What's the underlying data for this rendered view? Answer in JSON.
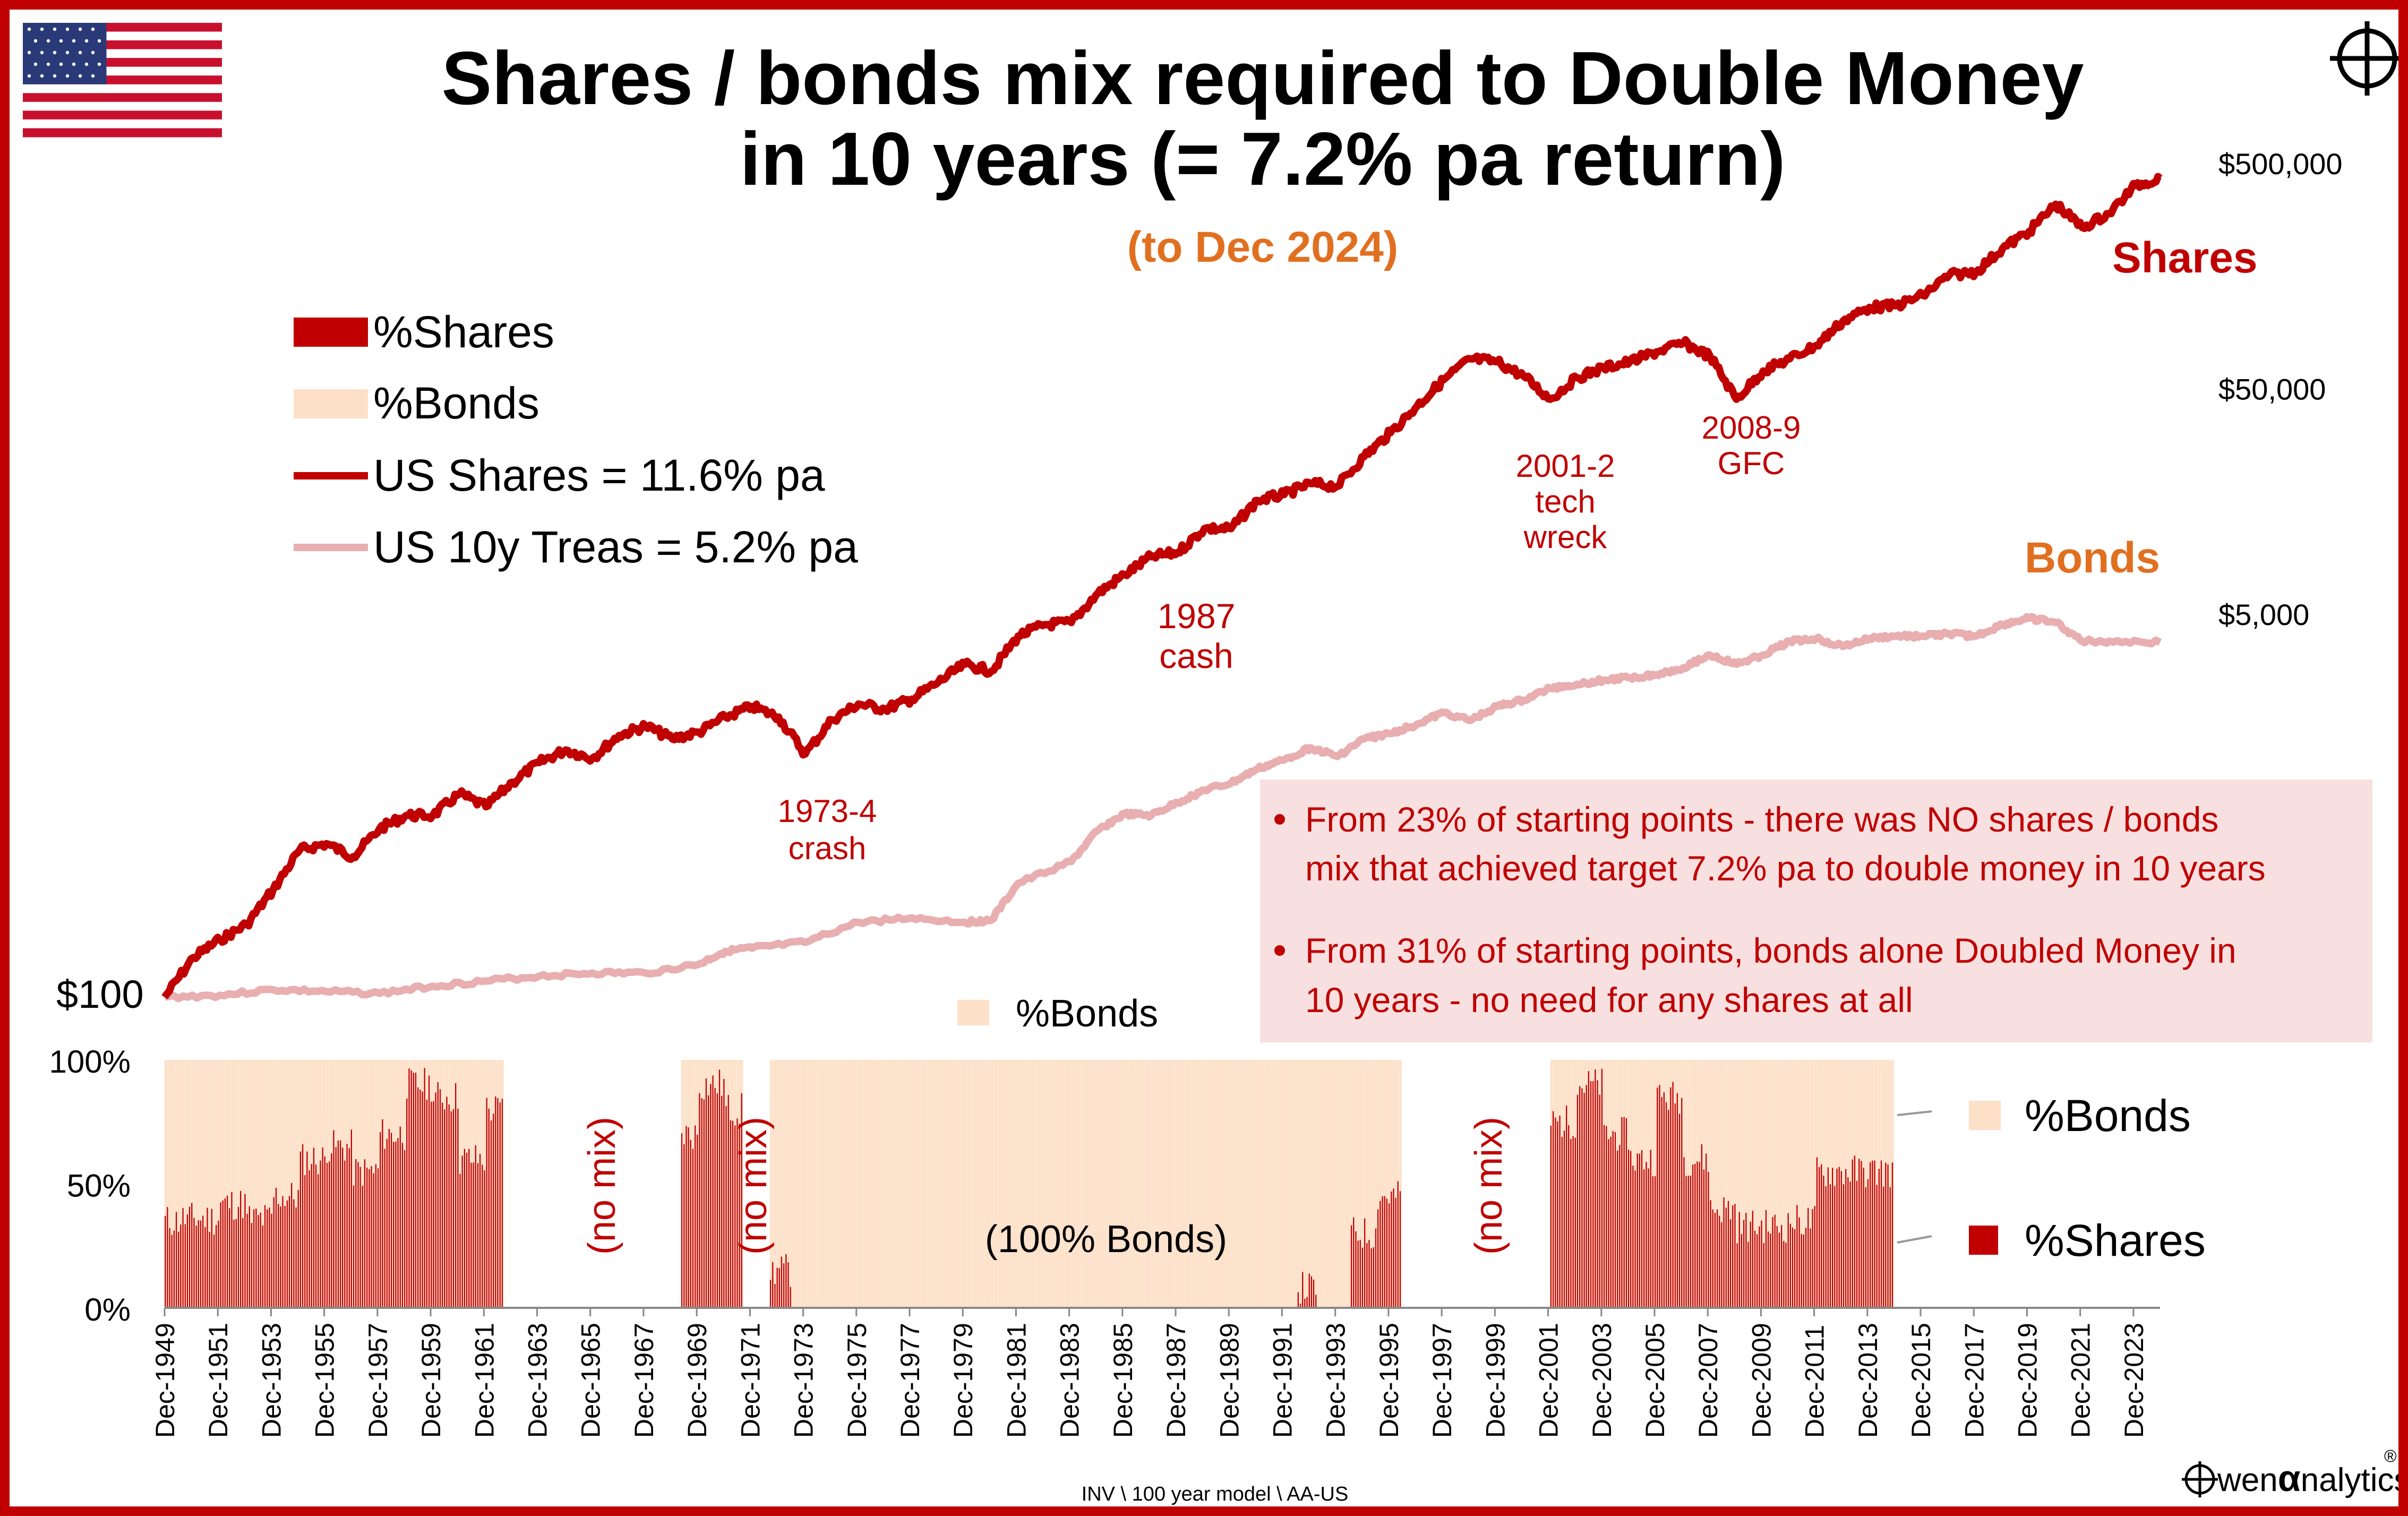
{
  "title_line1": "Shares / bonds mix required to Double Money",
  "title_line2": "in 10 years (= 7.2% pa return)",
  "subtitle": "(to Dec 2024)",
  "colors": {
    "border": "#c00000",
    "shares": "#c00000",
    "bonds_line": "#e8aeb0",
    "bonds_fill": "#fde0c8",
    "orange": "#e07020",
    "note_box": "#f8e0e0"
  },
  "legend_top": [
    {
      "label": "%Shares",
      "icon": "swatch-shares"
    },
    {
      "label": "%Bonds",
      "icon": "swatch-bonds"
    },
    {
      "label": "US Shares = 11.6% pa",
      "icon": "line-shares"
    },
    {
      "label": "US 10y Treas = 5.2% pa",
      "icon": "line-bonds"
    }
  ],
  "series_labels": {
    "shares": "Shares",
    "bonds": "Bonds"
  },
  "start_label": "$100",
  "annotations": [
    {
      "lines": [
        "1973-4",
        "crash"
      ]
    },
    {
      "lines": [
        "1987",
        "cash"
      ]
    },
    {
      "lines": [
        "2001-2",
        "tech",
        "wreck"
      ]
    },
    {
      "lines": [
        "2008-9",
        "GFC"
      ]
    }
  ],
  "notes": [
    "From 23% of starting points - there was NO shares / bonds mix that achieved target 7.2% pa to double money in 10 years",
    "From 31% of starting points, bonds alone Doubled Money in 10 years - no need for any shares at all"
  ],
  "mid_legend_label": "%Bonds",
  "bottom_legend": [
    {
      "label": "%Bonds",
      "icon": "swatch-bonds"
    },
    {
      "label": "%Shares",
      "icon": "swatch-shares"
    }
  ],
  "bar_annotations": [
    "(no mix)",
    "(no mix)",
    "(no mix)",
    "(100% Bonds)"
  ],
  "footer_path": "INV \\ 100 year model \\ AA-US",
  "brand": {
    "prefix": "wen",
    "alpha": "α",
    "suffix": "nalytics",
    "reg": "®"
  },
  "chart_data": [
    {
      "type": "line",
      "y_scale": "log",
      "y_ticks": [
        "$500,000",
        "$50,000",
        "$5,000"
      ],
      "y_tick_values": [
        500000,
        50000,
        5000
      ],
      "ylim": [
        100,
        500000
      ],
      "series": [
        {
          "name": "US Shares = 11.6% pa",
          "points": [
            [
              1949.92,
              100
            ],
            [
              1951,
              150
            ],
            [
              1952,
              180
            ],
            [
              1953,
              210
            ],
            [
              1954,
              300
            ],
            [
              1955,
              450
            ],
            [
              1956,
              480
            ],
            [
              1957,
              420
            ],
            [
              1958,
              560
            ],
            [
              1959,
              640
            ],
            [
              1960,
              640
            ],
            [
              1961,
              800
            ],
            [
              1962,
              700
            ],
            [
              1963,
              900
            ],
            [
              1964,
              1100
            ],
            [
              1965,
              1250
            ],
            [
              1966,
              1150
            ],
            [
              1967,
              1450
            ],
            [
              1968,
              1600
            ],
            [
              1969,
              1400
            ],
            [
              1970,
              1500
            ],
            [
              1971,
              1750
            ],
            [
              1972,
              1950
            ],
            [
              1973,
              1750
            ],
            [
              1974,
              1200
            ],
            [
              1975,
              1700
            ],
            [
              1976,
              2000
            ],
            [
              1977,
              1900
            ],
            [
              1978,
              2100
            ],
            [
              1979,
              2500
            ],
            [
              1980,
              3000
            ],
            [
              1981,
              2800
            ],
            [
              1982,
              4000
            ],
            [
              1983,
              4500
            ],
            [
              1984,
              4600
            ],
            [
              1985,
              6200
            ],
            [
              1986,
              7500
            ],
            [
              1987,
              9000
            ],
            [
              1988,
              9400
            ],
            [
              1989,
              12000
            ],
            [
              1990,
              12000
            ],
            [
              1991,
              16000
            ],
            [
              1992,
              17000
            ],
            [
              1993,
              19000
            ],
            [
              1994,
              18500
            ],
            [
              1995,
              25000
            ],
            [
              1996,
              32000
            ],
            [
              1997,
              42000
            ],
            [
              1998,
              55000
            ],
            [
              1999,
              68000
            ],
            [
              2000,
              66000
            ],
            [
              2001,
              57000
            ],
            [
              2002,
              45000
            ],
            [
              2003,
              56000
            ],
            [
              2004,
              62000
            ],
            [
              2005,
              66000
            ],
            [
              2006,
              73000
            ],
            [
              2007,
              80000
            ],
            [
              2008,
              70000
            ],
            [
              2009,
              45000
            ],
            [
              2010,
              60000
            ],
            [
              2011,
              68000
            ],
            [
              2012,
              78000
            ],
            [
              2013,
              100000
            ],
            [
              2014,
              115000
            ],
            [
              2015,
              117000
            ],
            [
              2016,
              130000
            ],
            [
              2017,
              160000
            ],
            [
              2018,
              165000
            ],
            [
              2019,
              210000
            ],
            [
              2020,
              250000
            ],
            [
              2021,
              330000
            ],
            [
              2022,
              260000
            ],
            [
              2023,
              300000
            ],
            [
              2024,
              400000
            ],
            [
              2024.92,
              430000
            ]
          ]
        },
        {
          "name": "US 10y Treas = 5.2% pa",
          "points": [
            [
              1949.92,
              100
            ],
            [
              1952,
              102
            ],
            [
              1954,
              108
            ],
            [
              1956,
              106
            ],
            [
              1958,
              104
            ],
            [
              1960,
              112
            ],
            [
              1962,
              118
            ],
            [
              1964,
              124
            ],
            [
              1966,
              128
            ],
            [
              1968,
              128
            ],
            [
              1970,
              140
            ],
            [
              1971,
              160
            ],
            [
              1972,
              165
            ],
            [
              1974,
              175
            ],
            [
              1976,
              215
            ],
            [
              1978,
              225
            ],
            [
              1980,
              215
            ],
            [
              1981,
              220
            ],
            [
              1982,
              320
            ],
            [
              1984,
              400
            ],
            [
              1985,
              550
            ],
            [
              1986,
              650
            ],
            [
              1987,
              640
            ],
            [
              1988,
              730
            ],
            [
              1989,
              830
            ],
            [
              1990,
              890
            ],
            [
              1991,
              1030
            ],
            [
              1992,
              1130
            ],
            [
              1993,
              1280
            ],
            [
              1994,
              1170
            ],
            [
              1995,
              1400
            ],
            [
              1996,
              1480
            ],
            [
              1997,
              1630
            ],
            [
              1998,
              1830
            ],
            [
              1999,
              1690
            ],
            [
              2000,
              1950
            ],
            [
              2001,
              2080
            ],
            [
              2002,
              2350
            ],
            [
              2003,
              2450
            ],
            [
              2004,
              2550
            ],
            [
              2005,
              2620
            ],
            [
              2006,
              2700
            ],
            [
              2007,
              2900
            ],
            [
              2008,
              3300
            ],
            [
              2009,
              3000
            ],
            [
              2010,
              3300
            ],
            [
              2011,
              3800
            ],
            [
              2012,
              3900
            ],
            [
              2013,
              3600
            ],
            [
              2014,
              3900
            ],
            [
              2015,
              4000
            ],
            [
              2016,
              4000
            ],
            [
              2017,
              4100
            ],
            [
              2018,
              4000
            ],
            [
              2019,
              4500
            ],
            [
              2020,
              4800
            ],
            [
              2021,
              4600
            ],
            [
              2022,
              3800
            ],
            [
              2023,
              3800
            ],
            [
              2024.92,
              3750
            ]
          ]
        }
      ]
    },
    {
      "type": "bar",
      "stacked": true,
      "y_ticks": [
        "100%",
        "50%",
        "0%"
      ],
      "ylim": [
        0,
        100
      ],
      "x_tick_labels": [
        "Dec-1949",
        "Dec-1951",
        "Dec-1953",
        "Dec-1955",
        "Dec-1957",
        "Dec-1959",
        "Dec-1961",
        "Dec-1963",
        "Dec-1965",
        "Dec-1967",
        "Dec-1969",
        "Dec-1971",
        "Dec-1973",
        "Dec-1975",
        "Dec-1977",
        "Dec-1979",
        "Dec-1981",
        "Dec-1983",
        "Dec-1985",
        "Dec-1987",
        "Dec-1989",
        "Dec-1991",
        "Dec-1993",
        "Dec-1995",
        "Dec-1997",
        "Dec-1999",
        "Dec-2001",
        "Dec-2003",
        "Dec-2005",
        "Dec-2007",
        "Dec-2009",
        "Dec-2011",
        "Dec-2013",
        "Dec-2015",
        "Dec-2017",
        "Dec-2019",
        "Dec-2021",
        "Dec-2023"
      ],
      "series": [
        {
          "name": "%Shares",
          "color": "#c00000"
        },
        {
          "name": "%Bonds",
          "color": "#fde0c8"
        }
      ],
      "shares_pct_by_period": [
        {
          "from": 1949.92,
          "to": 1950.5,
          "pct": 35
        },
        {
          "from": 1950.5,
          "to": 1952.0,
          "pct": 36
        },
        {
          "from": 1952.0,
          "to": 1953.0,
          "pct": 42
        },
        {
          "from": 1953.0,
          "to": 1954.0,
          "pct": 36
        },
        {
          "from": 1954.0,
          "to": 1955.0,
          "pct": 45
        },
        {
          "from": 1955.0,
          "to": 1956.0,
          "pct": 60
        },
        {
          "from": 1956.0,
          "to": 1957.0,
          "pct": 65
        },
        {
          "from": 1957.0,
          "to": 1958.0,
          "pct": 55
        },
        {
          "from": 1958.0,
          "to": 1959.0,
          "pct": 70
        },
        {
          "from": 1959.0,
          "to": 1960.0,
          "pct": 90
        },
        {
          "from": 1960.0,
          "to": 1961.0,
          "pct": 85
        },
        {
          "from": 1961.0,
          "to": 1962.0,
          "pct": 60
        },
        {
          "from": 1962.0,
          "to": 1962.6,
          "pct": 80
        },
        {
          "from": 1969.3,
          "to": 1970.0,
          "pct": 70
        },
        {
          "from": 1970.0,
          "to": 1971.0,
          "pct": 90
        },
        {
          "from": 1971.0,
          "to": 1971.6,
          "pct": 80
        },
        {
          "from": 1972.6,
          "to": 1973.5,
          "pct": 15
        },
        {
          "from": 1973.5,
          "to": 1994.5,
          "pct": 0
        },
        {
          "from": 1992.5,
          "to": 1993.2,
          "pct": 8
        },
        {
          "from": 1994.5,
          "to": 1995.5,
          "pct": 30
        },
        {
          "from": 1995.5,
          "to": 1996.4,
          "pct": 45
        },
        {
          "from": 2002.0,
          "to": 2003.0,
          "pct": 75
        },
        {
          "from": 2003.0,
          "to": 2004.0,
          "pct": 90
        },
        {
          "from": 2004.0,
          "to": 2005.0,
          "pct": 70
        },
        {
          "from": 2005.0,
          "to": 2006.0,
          "pct": 60
        },
        {
          "from": 2006.0,
          "to": 2007.0,
          "pct": 85
        },
        {
          "from": 2007.0,
          "to": 2008.0,
          "pct": 60
        },
        {
          "from": 2008.0,
          "to": 2009.0,
          "pct": 40
        },
        {
          "from": 2009.0,
          "to": 2010.0,
          "pct": 33
        },
        {
          "from": 2010.0,
          "to": 2011.0,
          "pct": 33
        },
        {
          "from": 2011.0,
          "to": 2012.0,
          "pct": 35
        },
        {
          "from": 2012.0,
          "to": 2014.9,
          "pct": 55
        }
      ],
      "no_mix_periods": [
        [
          1962.6,
          1969.3
        ],
        [
          1971.6,
          1972.6
        ],
        [
          1996.4,
          2002.0
        ]
      ],
      "data_end": 2014.9
    }
  ]
}
